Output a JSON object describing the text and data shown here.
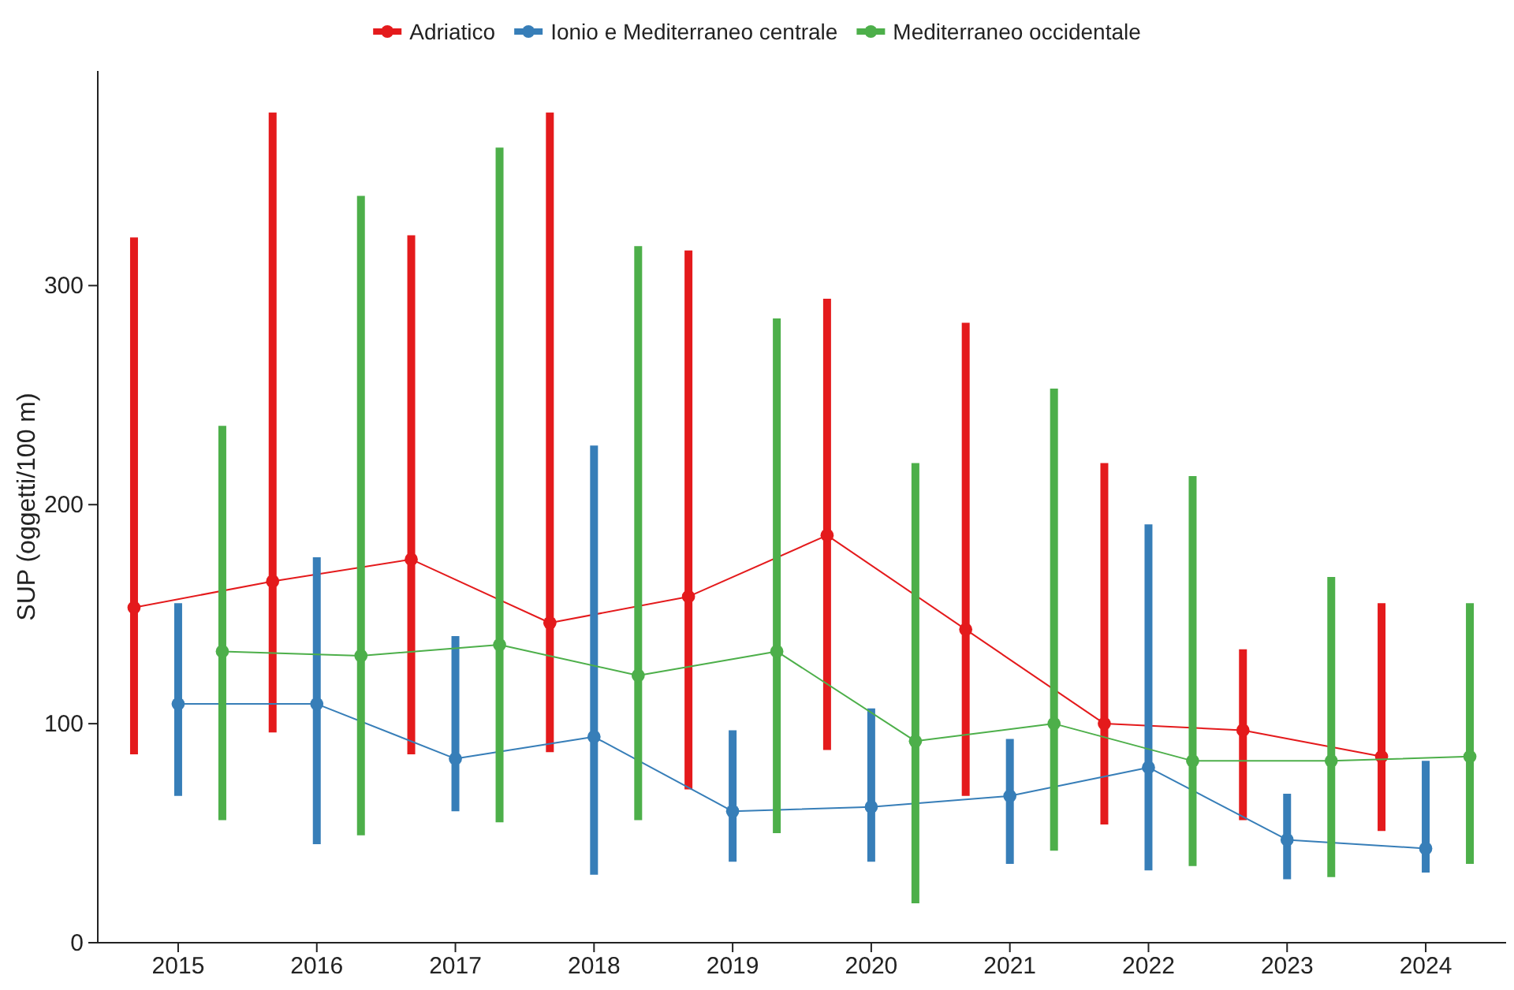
{
  "chart_data": {
    "type": "line",
    "ylabel": "SUP (oggetti/100 m)",
    "categories": [
      "2015",
      "2016",
      "2017",
      "2018",
      "2019",
      "2020",
      "2021",
      "2022",
      "2023",
      "2024"
    ],
    "series": [
      {
        "name": "Adriatico",
        "color": "#e41a1c",
        "values": [
          153,
          165,
          175,
          146,
          158,
          186,
          143,
          100,
          97,
          85
        ],
        "errors": [
          [
            86,
            322
          ],
          [
            96,
            379
          ],
          [
            86,
            323
          ],
          [
            87,
            379
          ],
          [
            70,
            316
          ],
          [
            88,
            294
          ],
          [
            67,
            283
          ],
          [
            54,
            219
          ],
          [
            56,
            134
          ],
          [
            51,
            155
          ]
        ]
      },
      {
        "name": "Ionio e Mediterraneo centrale",
        "color": "#377eb8",
        "values": [
          109,
          109,
          84,
          94,
          60,
          62,
          67,
          80,
          47,
          43
        ],
        "errors": [
          [
            67,
            155
          ],
          [
            45,
            176
          ],
          [
            60,
            140
          ],
          [
            31,
            227
          ],
          [
            37,
            97
          ],
          [
            37,
            107
          ],
          [
            36,
            93
          ],
          [
            33,
            191
          ],
          [
            29,
            68
          ],
          [
            32,
            83
          ]
        ]
      },
      {
        "name": "Mediterraneo occidentale",
        "color": "#4daf4a",
        "values": [
          133,
          131,
          136,
          122,
          133,
          92,
          100,
          83,
          83,
          85
        ],
        "errors": [
          [
            56,
            236
          ],
          [
            49,
            341
          ],
          [
            55,
            363
          ],
          [
            56,
            318
          ],
          [
            50,
            285
          ],
          [
            18,
            219
          ],
          [
            42,
            253
          ],
          [
            35,
            213
          ],
          [
            30,
            167
          ],
          [
            36,
            155
          ]
        ]
      }
    ],
    "ylim": [
      0,
      398
    ],
    "yticks": [
      0,
      100,
      200,
      300
    ],
    "legend": "top",
    "marker": "circle",
    "line_style": "solid"
  }
}
